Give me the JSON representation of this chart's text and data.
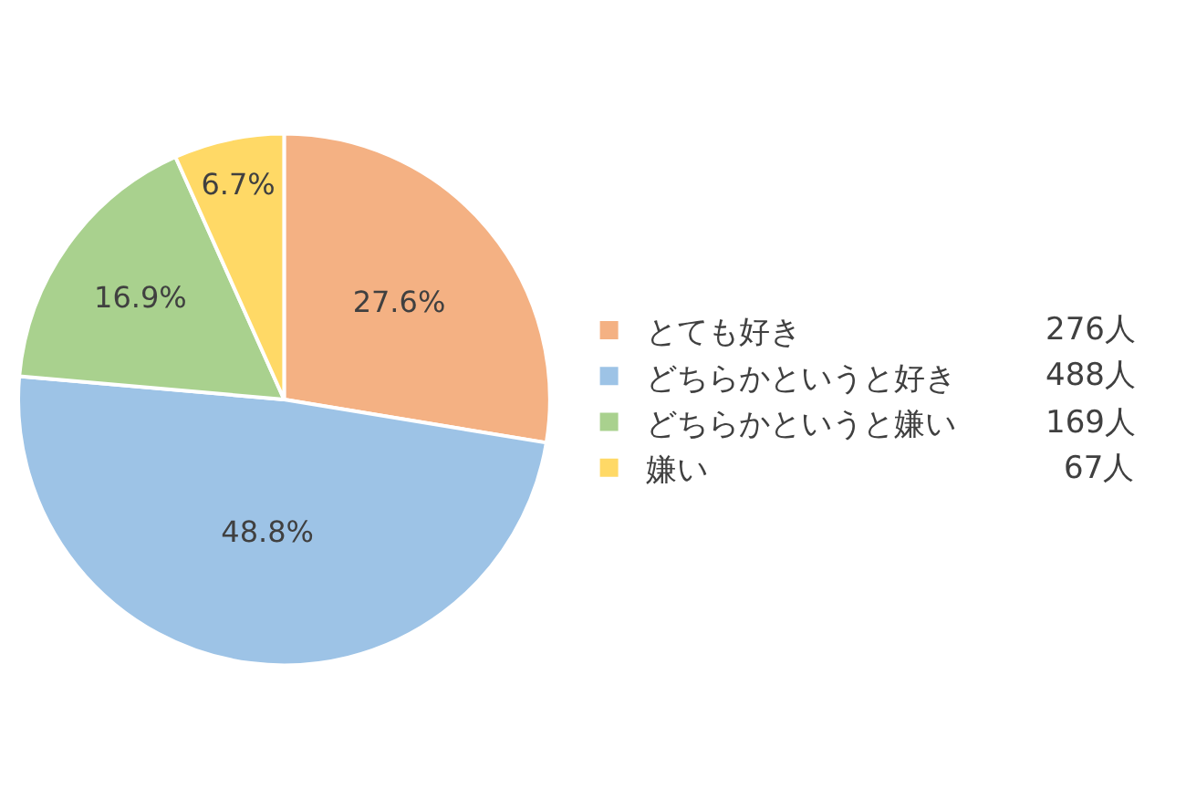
{
  "chart_data": {
    "type": "pie",
    "categories": [
      "とても好き",
      "どちらかというと好き",
      "どちらかというと嫌い",
      "嫌い"
    ],
    "values": [
      27.6,
      48.8,
      16.9,
      6.7
    ],
    "colors": [
      "#f4b183",
      "#9dc3e6",
      "#a9d18e",
      "#ffd966"
    ],
    "value_labels": [
      "27.6%",
      "48.8%",
      "16.9%",
      "6.7%"
    ],
    "annotations": [
      "276人",
      "488人",
      "169人",
      "67人"
    ],
    "legend": "right"
  }
}
